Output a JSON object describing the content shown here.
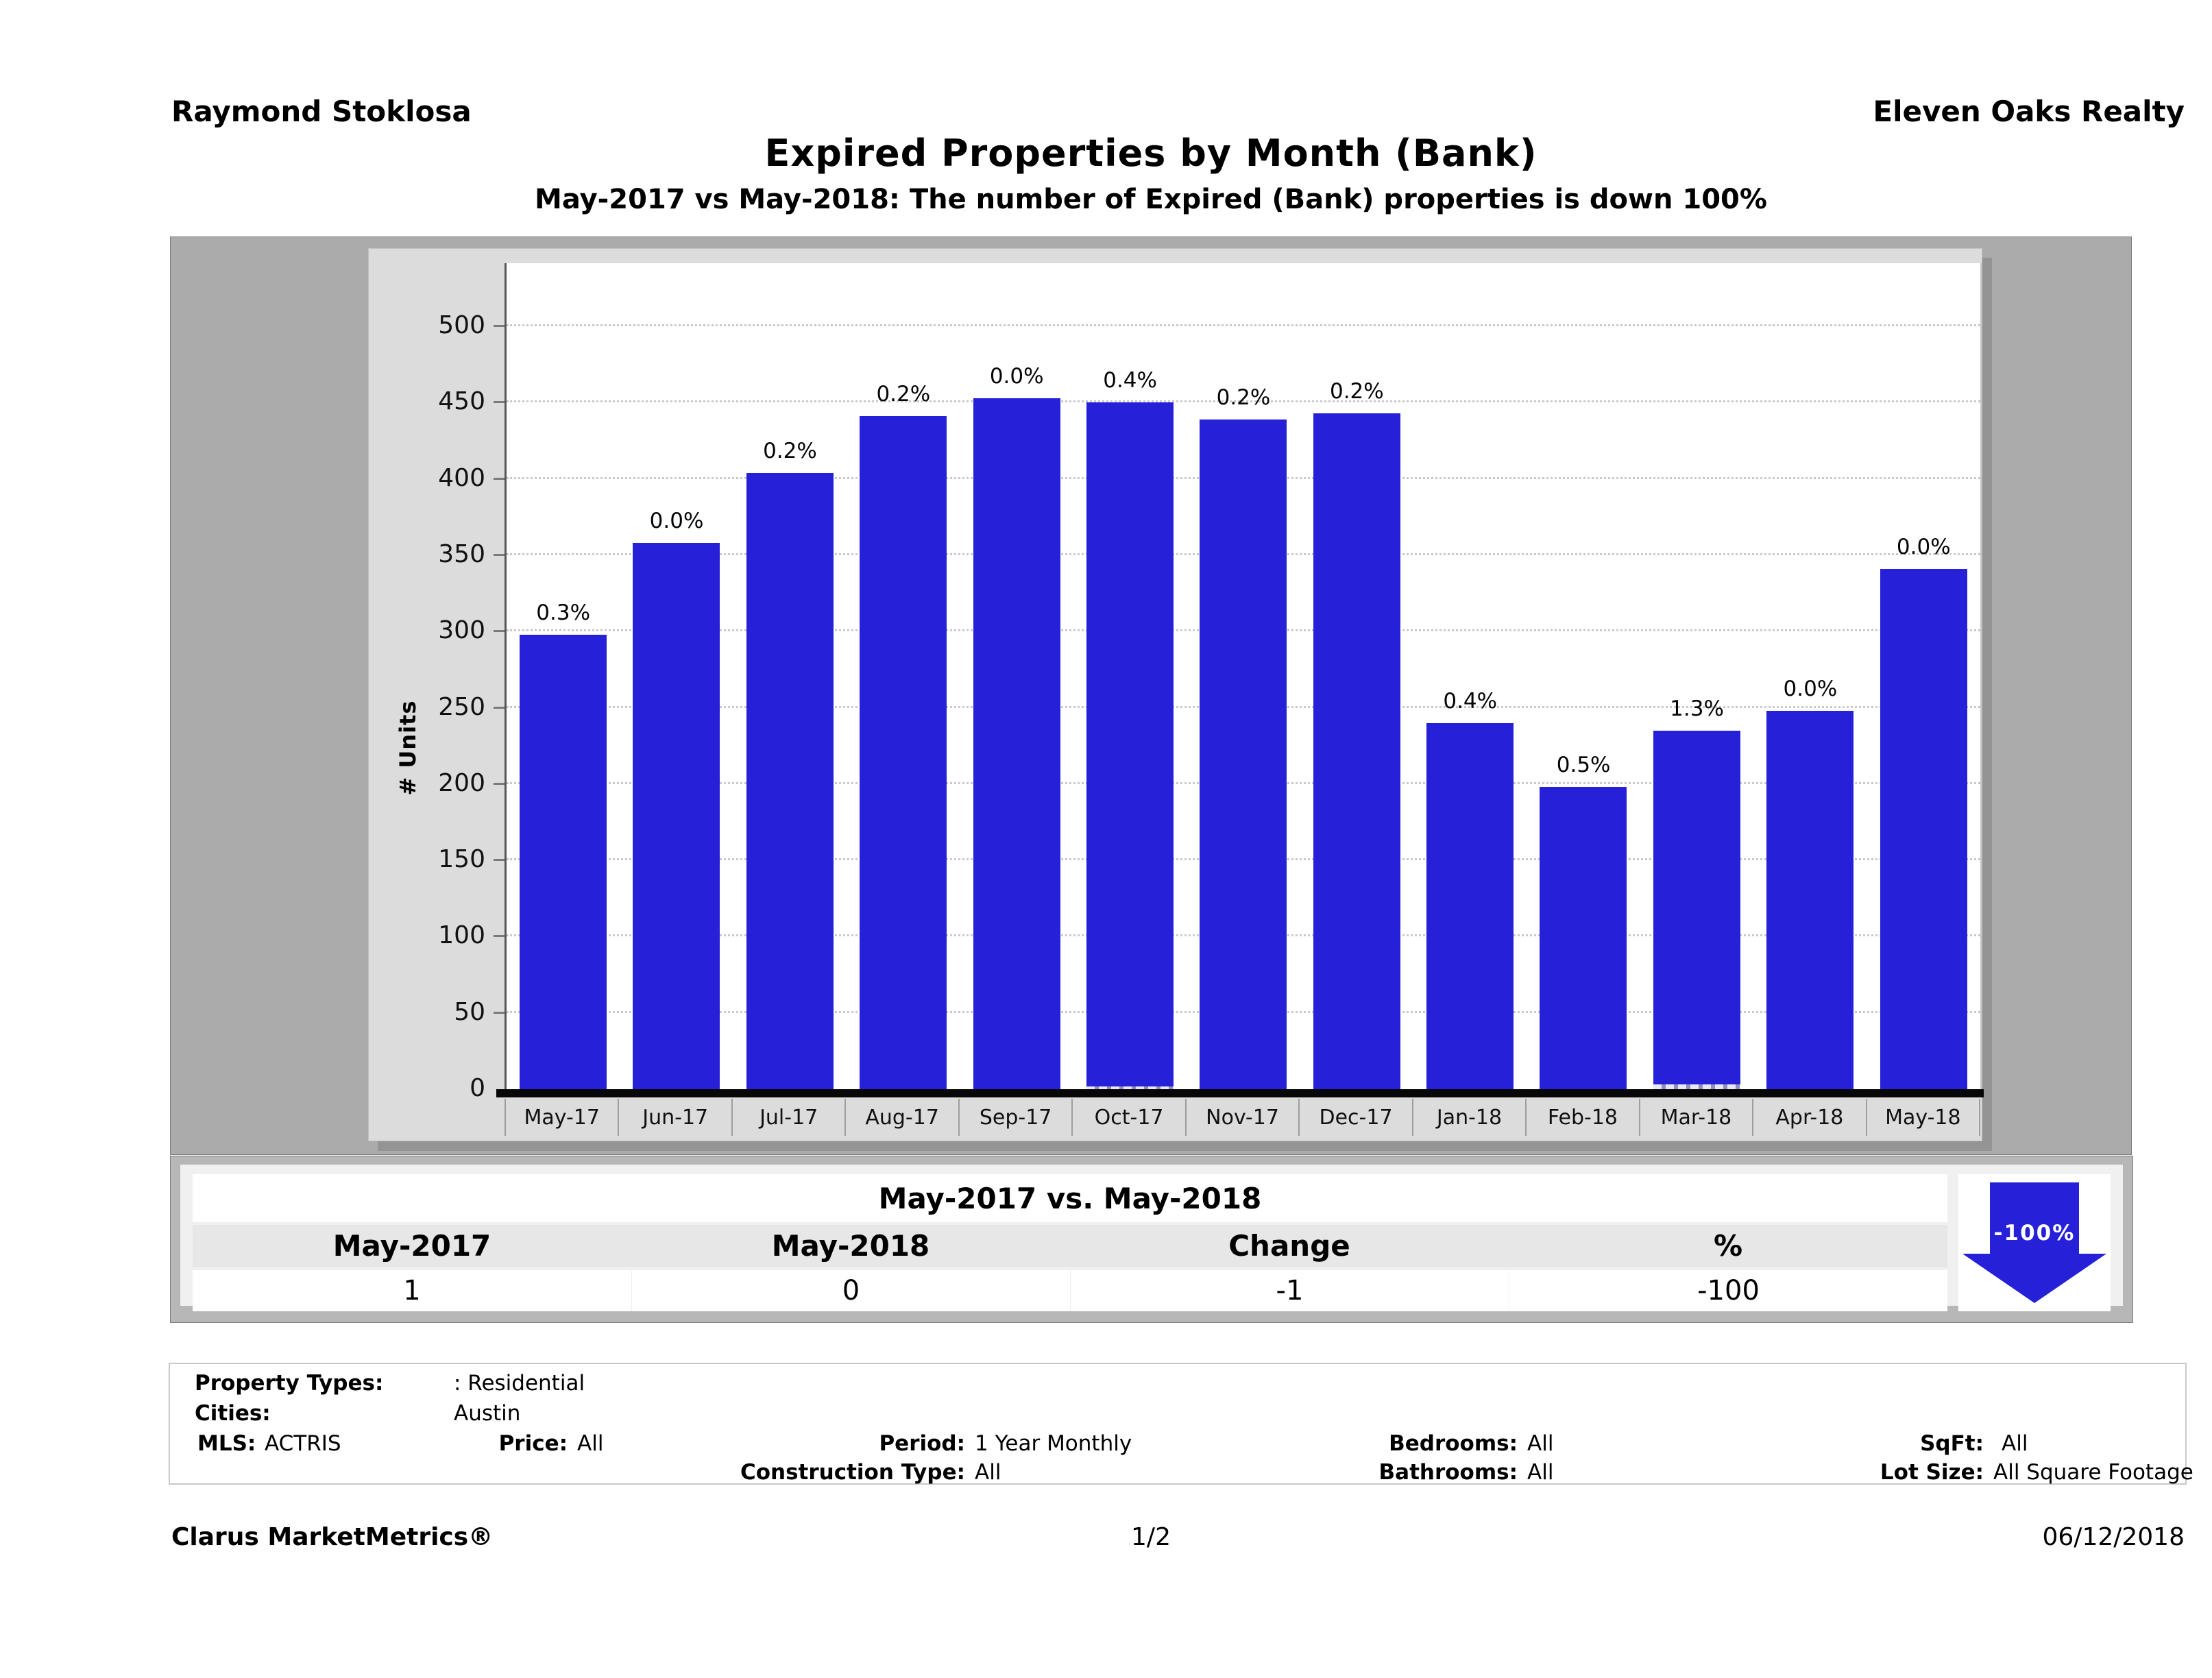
{
  "header": {
    "left": "Raymond Stoklosa",
    "right": "Eleven Oaks Realty"
  },
  "title": "Expired Properties by Month (Bank)",
  "subtitle": "May-2017 vs May-2018: The number of Expired (Bank)  properties is down 100%",
  "chart_data": {
    "type": "bar",
    "title": "Expired Properties by Month (Bank)",
    "xlabel": "",
    "ylabel": "# Units",
    "ylim": [
      0,
      541
    ],
    "yticks": [
      0,
      50,
      100,
      150,
      200,
      250,
      300,
      350,
      400,
      450,
      500
    ],
    "grid": "horizontal-dotted",
    "legend": "none",
    "categories": [
      "May-17",
      "Jun-17",
      "Jul-17",
      "Aug-17",
      "Sep-17",
      "Oct-17",
      "Nov-17",
      "Dec-17",
      "Jan-18",
      "Feb-18",
      "Mar-18",
      "Apr-18",
      "May-18"
    ],
    "series": [
      {
        "name": "total-expired-units",
        "color": "#2621d9",
        "values": [
          298,
          358,
          404,
          441,
          453,
          450,
          439,
          443,
          240,
          198,
          235,
          248,
          341
        ]
      },
      {
        "name": "expired-bank-units",
        "color": "#c9c9e2",
        "values": [
          1,
          0,
          1,
          1,
          0,
          2,
          1,
          1,
          1,
          1,
          3,
          0,
          0
        ]
      }
    ],
    "bar_labels": [
      "0.3%",
      "0.0%",
      "0.2%",
      "0.2%",
      "0.0%",
      "0.4%",
      "0.2%",
      "0.2%",
      "0.4%",
      "0.5%",
      "1.3%",
      "0.0%",
      "0.0%"
    ]
  },
  "comparison": {
    "title": "May-2017 vs. May-2018",
    "columns": [
      "May-2017",
      "May-2018",
      "Change",
      "%"
    ],
    "values": [
      "1",
      "0",
      "-1",
      "-100"
    ],
    "arrow_label": "-100%",
    "arrow_icon": "down-arrow"
  },
  "filters": {
    "property_types_label": "Property Types:",
    "property_types": ": Residential",
    "cities_label": "Cities:",
    "cities": "Austin",
    "mls_label": "MLS:",
    "mls": "ACTRIS",
    "price_label": "Price:",
    "price": "All",
    "period_label": "Period:",
    "period": "1 Year Monthly",
    "construction_label": "Construction Type:",
    "construction": "All",
    "bedrooms_label": "Bedrooms:",
    "bedrooms": "All",
    "bathrooms_label": "Bathrooms:",
    "bathrooms": "All",
    "sqft_label": "SqFt:",
    "sqft": "All",
    "lot_label": "Lot Size:",
    "lot": "All Square Footage"
  },
  "footer": {
    "left": "Clarus MarketMetrics®",
    "center": "1/2",
    "right": "06/12/2018"
  },
  "colors": {
    "bar": "#2621d9",
    "arrow": "#2621d9",
    "panel_gray": "#ababab",
    "frame_gray": "#dcdcdc",
    "table_header_gray": "#e7e7e7"
  }
}
